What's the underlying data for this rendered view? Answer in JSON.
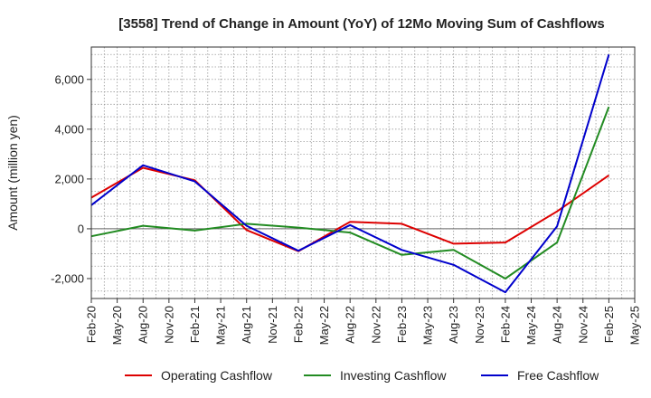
{
  "chart_data": {
    "type": "line",
    "title": "[3558]  Trend of Change in Amount (YoY) of 12Mo Moving Sum of Cashflows",
    "xlabel": "",
    "ylabel": "Amount (million yen)",
    "ylim": [
      -2800,
      7300
    ],
    "yticks": [
      -2000,
      0,
      2000,
      4000,
      6000
    ],
    "ytick_labels": [
      "-2,000",
      "0",
      "2,000",
      "4,000",
      "6,000"
    ],
    "categories": [
      "Feb-20",
      "May-20",
      "Aug-20",
      "Nov-20",
      "Feb-21",
      "May-21",
      "Aug-21",
      "Nov-21",
      "Feb-22",
      "May-22",
      "Aug-22",
      "Nov-22",
      "Feb-23",
      "May-23",
      "Aug-23",
      "Nov-23",
      "Feb-24",
      "May-24",
      "Aug-24",
      "Nov-24",
      "Feb-25",
      "May-25"
    ],
    "series": [
      {
        "name": "Operating Cashflow",
        "color": "#dd0000",
        "values": [
          1250,
          null,
          2450,
          null,
          1950,
          null,
          -50,
          null,
          -900,
          null,
          280,
          null,
          200,
          null,
          -600,
          null,
          -550,
          null,
          700,
          null,
          2150,
          null
        ]
      },
      {
        "name": "Investing Cashflow",
        "color": "#228b22",
        "values": [
          -300,
          null,
          120,
          null,
          -70,
          null,
          200,
          null,
          50,
          null,
          -150,
          null,
          -1050,
          null,
          -850,
          null,
          -2000,
          null,
          -550,
          null,
          4900,
          null
        ]
      },
      {
        "name": "Free Cashflow",
        "color": "#0000cc",
        "values": [
          950,
          null,
          2550,
          null,
          1900,
          null,
          120,
          null,
          -880,
          null,
          150,
          null,
          -850,
          null,
          -1450,
          null,
          -2550,
          null,
          100,
          null,
          7000,
          null
        ]
      }
    ],
    "grid": true,
    "legend_position": "bottom"
  }
}
